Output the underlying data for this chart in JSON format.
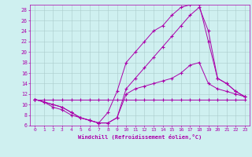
{
  "xlabel": "Windchill (Refroidissement éolien,°C)",
  "xlim": [
    -0.5,
    23.5
  ],
  "ylim": [
    6,
    29
  ],
  "yticks": [
    6,
    8,
    10,
    12,
    14,
    16,
    18,
    20,
    22,
    24,
    26,
    28
  ],
  "xticks": [
    0,
    1,
    2,
    3,
    4,
    5,
    6,
    7,
    8,
    9,
    10,
    11,
    12,
    13,
    14,
    15,
    16,
    17,
    18,
    19,
    20,
    21,
    22,
    23
  ],
  "background_color": "#cff0f0",
  "line_color": "#aa00aa",
  "grid_color": "#aacccc",
  "lines": [
    {
      "x": [
        0,
        1,
        2,
        3,
        4,
        5,
        6,
        7,
        8,
        9,
        10,
        11,
        12,
        13,
        14,
        15,
        16,
        17,
        18,
        19,
        20,
        21,
        22,
        23
      ],
      "y": [
        11,
        11,
        11,
        11,
        11,
        11,
        11,
        11,
        11,
        11,
        11,
        11,
        11,
        11,
        11,
        11,
        11,
        11,
        11,
        11,
        11,
        11,
        11,
        11
      ]
    },
    {
      "x": [
        0,
        1,
        2,
        3,
        4,
        5,
        6,
        7,
        8,
        9,
        10,
        11,
        12,
        13,
        14,
        15,
        16,
        17,
        18,
        19,
        20,
        21,
        22,
        23
      ],
      "y": [
        11,
        10.5,
        9.5,
        9,
        8,
        7.5,
        7,
        6.5,
        6.5,
        7.5,
        12,
        13,
        13.5,
        14,
        14.5,
        15,
        16,
        17.5,
        18,
        14,
        13,
        12.5,
        12,
        11.5
      ]
    },
    {
      "x": [
        0,
        1,
        2,
        3,
        4,
        5,
        6,
        7,
        8,
        9,
        10,
        11,
        12,
        13,
        14,
        15,
        16,
        17,
        18,
        19,
        20,
        21,
        22,
        23
      ],
      "y": [
        11,
        10.5,
        10,
        9.5,
        8.5,
        7.5,
        7,
        6.5,
        6.5,
        7.5,
        13,
        15,
        17,
        19,
        21,
        23,
        25,
        27,
        28.5,
        24,
        15,
        14,
        12.5,
        11.5
      ]
    },
    {
      "x": [
        0,
        1,
        2,
        3,
        4,
        5,
        6,
        7,
        8,
        9,
        10,
        11,
        12,
        13,
        14,
        15,
        16,
        17,
        18,
        19,
        20,
        21,
        22,
        23
      ],
      "y": [
        11,
        10.5,
        10,
        9.5,
        8.5,
        7.5,
        7,
        6.5,
        8.5,
        12.5,
        18,
        20,
        22,
        24,
        25,
        27,
        28.5,
        29,
        29,
        22,
        15,
        14,
        12.5,
        11.5
      ]
    }
  ]
}
